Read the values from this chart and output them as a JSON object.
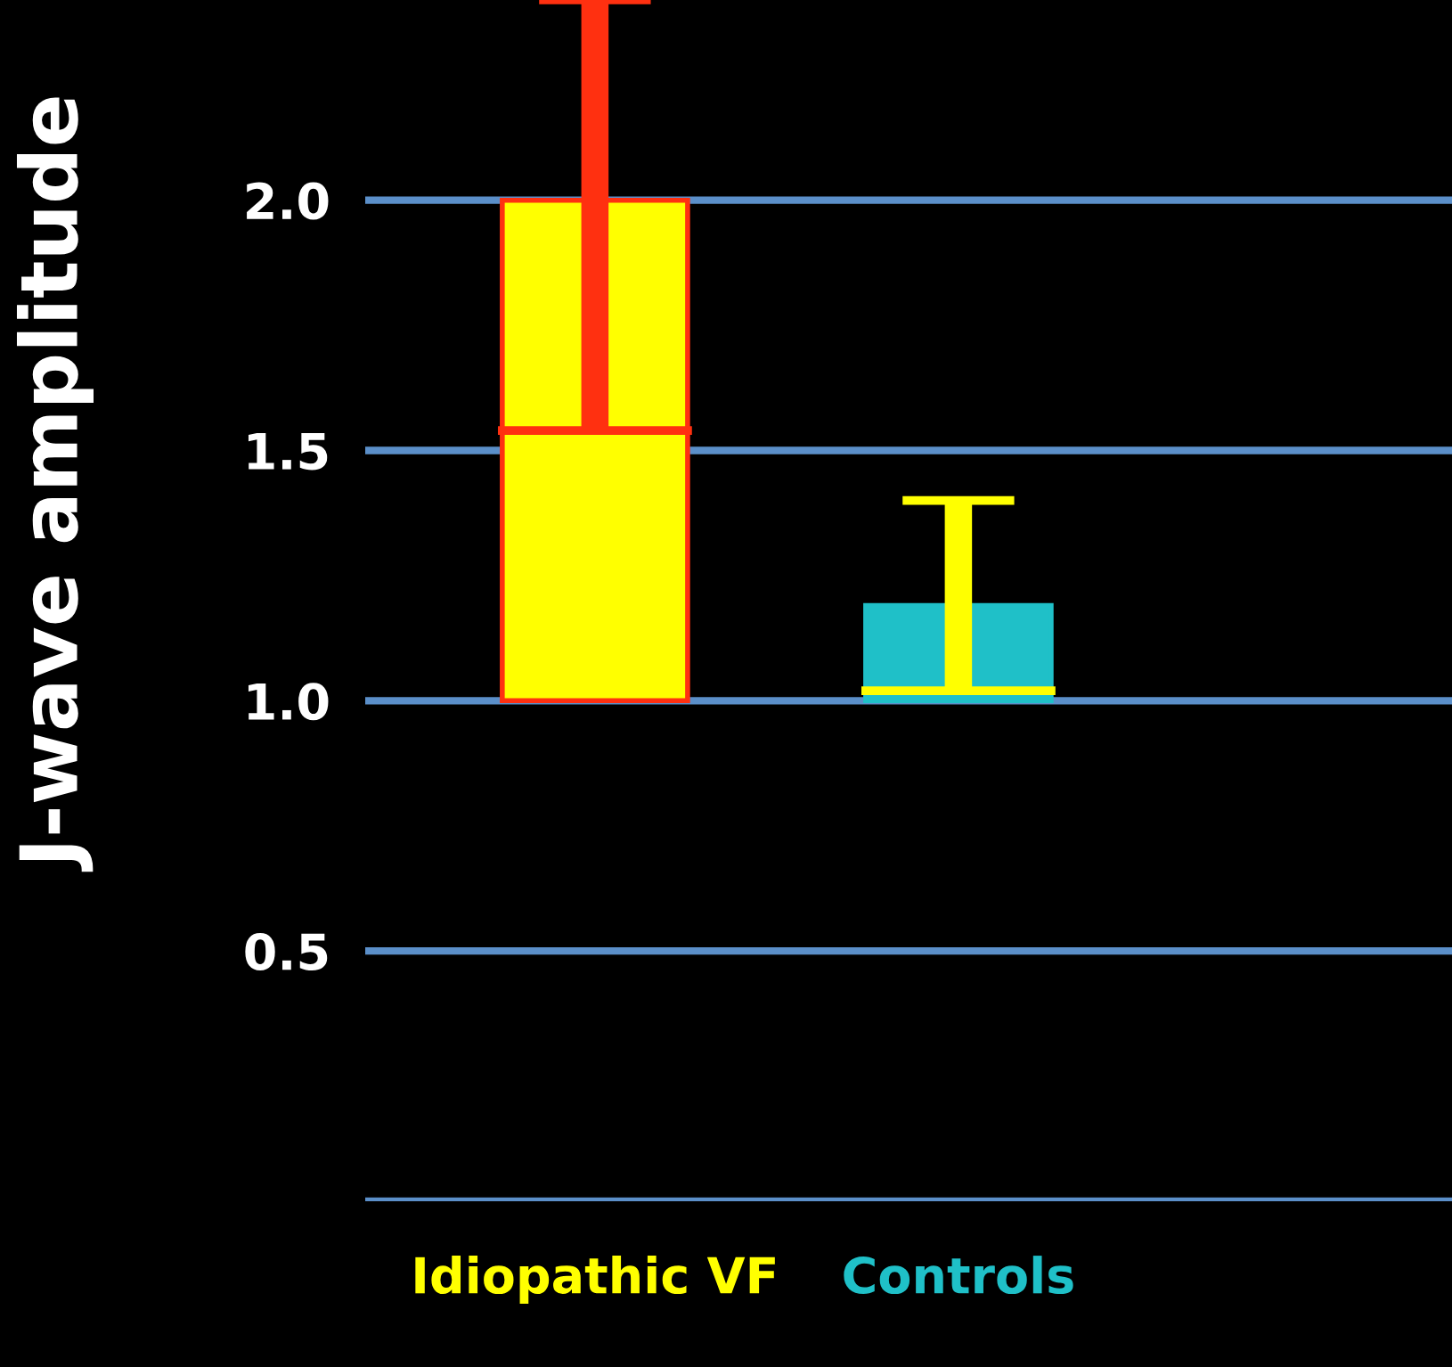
{
  "chart_data": {
    "type": "box",
    "ylabel": "J-wave amplitude",
    "categories": [
      "Idiopathic VF",
      "Controls"
    ],
    "boxes": [
      {
        "low": 1.0,
        "q1": 1.0,
        "median": 1.54,
        "q3": 2.0,
        "high": 2.4
      },
      {
        "low": 1.0,
        "q1": 1.0,
        "median": 1.02,
        "q3": 1.19,
        "high": 1.4
      }
    ],
    "colors": [
      "#ffff00",
      "#1fc0c8"
    ],
    "ylim": [
      0,
      2.4
    ],
    "yticks": [
      {
        "value": 0,
        "label": null
      },
      0.5,
      {
        "value": 1.0,
        "label": "1.0"
      },
      1.5,
      {
        "value": 2.0,
        "label": "2.0"
      }
    ],
    "grid": "y"
  }
}
